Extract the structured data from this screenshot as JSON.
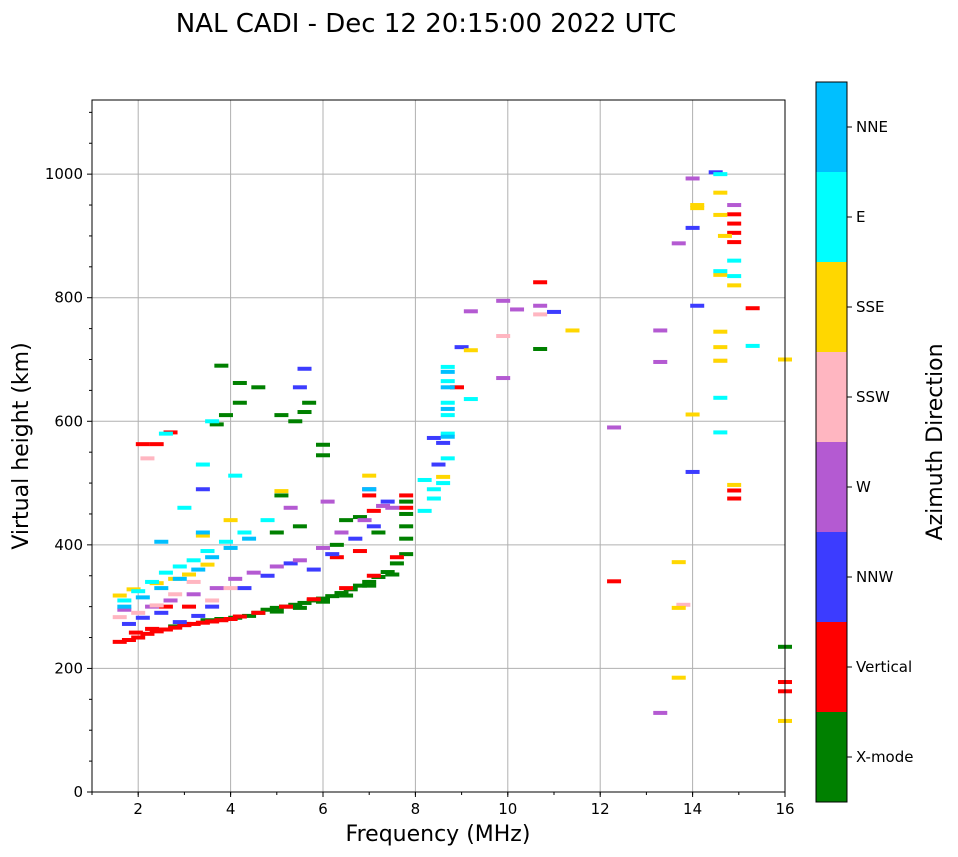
{
  "chart_data": {
    "type": "scatter",
    "title": "NAL CADI - Dec 12 20:15:00 2022 UTC",
    "xlabel": "Frequency (MHz)",
    "ylabel": "Virtual height (km)",
    "xlim": [
      1,
      16
    ],
    "ylim": [
      0,
      1120
    ],
    "xticks": [
      2,
      4,
      6,
      8,
      10,
      12,
      14,
      16
    ],
    "yticks": [
      0,
      200,
      400,
      600,
      800,
      1000
    ],
    "grid": true,
    "colorbar": {
      "title": "Azimuth Direction",
      "categories": [
        {
          "label": "X-mode",
          "color": "#008000"
        },
        {
          "label": "Vertical",
          "color": "#ff0000"
        },
        {
          "label": "NNW",
          "color": "#3c3cff"
        },
        {
          "label": "W",
          "color": "#b45ad2"
        },
        {
          "label": "SSW",
          "color": "#ffb6c1"
        },
        {
          "label": "SSE",
          "color": "#ffd700"
        },
        {
          "label": "E",
          "color": "#00ffff"
        },
        {
          "label": "NNE",
          "color": "#00bfff"
        }
      ]
    },
    "series": [
      {
        "name": "X-mode",
        "color": "#008000",
        "points": [
          [
            4.1,
            282
          ],
          [
            4.4,
            285
          ],
          [
            4.6,
            290
          ],
          [
            4.8,
            295
          ],
          [
            5.0,
            298
          ],
          [
            5.2,
            300
          ],
          [
            5.4,
            303
          ],
          [
            5.6,
            306
          ],
          [
            5.8,
            310
          ],
          [
            6.0,
            313
          ],
          [
            6.2,
            317
          ],
          [
            6.4,
            322
          ],
          [
            6.6,
            328
          ],
          [
            6.8,
            334
          ],
          [
            7.0,
            340
          ],
          [
            7.2,
            348
          ],
          [
            7.4,
            356
          ],
          [
            7.6,
            370
          ],
          [
            7.8,
            385
          ],
          [
            5.0,
            292
          ],
          [
            5.5,
            298
          ],
          [
            6.0,
            308
          ],
          [
            6.5,
            318
          ],
          [
            7.0,
            334
          ],
          [
            7.5,
            352
          ],
          [
            7.8,
            410
          ],
          [
            7.8,
            430
          ],
          [
            7.8,
            450
          ],
          [
            7.8,
            470
          ],
          [
            3.5,
            278
          ],
          [
            3.8,
            280
          ],
          [
            3.0,
            272
          ],
          [
            2.8,
            268
          ],
          [
            4.6,
            655
          ],
          [
            5.1,
            610
          ],
          [
            5.4,
            600
          ],
          [
            5.6,
            615
          ],
          [
            5.7,
            630
          ],
          [
            3.9,
            610
          ],
          [
            3.7,
            595
          ],
          [
            4.2,
            630
          ],
          [
            3.8,
            690
          ],
          [
            4.2,
            662
          ],
          [
            6.0,
            545
          ],
          [
            6.0,
            562
          ],
          [
            5.1,
            480
          ],
          [
            5.5,
            430
          ],
          [
            6.5,
            440
          ],
          [
            6.8,
            445
          ],
          [
            7.2,
            420
          ],
          [
            6.3,
            400
          ],
          [
            5.0,
            420
          ],
          [
            10.7,
            717
          ],
          [
            16.0,
            235
          ]
        ]
      },
      {
        "name": "Vertical",
        "color": "#ff0000",
        "points": [
          [
            1.6,
            243
          ],
          [
            1.8,
            246
          ],
          [
            2.0,
            250
          ],
          [
            2.2,
            256
          ],
          [
            2.4,
            260
          ],
          [
            2.6,
            263
          ],
          [
            2.8,
            266
          ],
          [
            3.0,
            270
          ],
          [
            3.2,
            272
          ],
          [
            3.4,
            274
          ],
          [
            3.6,
            276
          ],
          [
            3.8,
            278
          ],
          [
            4.0,
            280
          ],
          [
            4.2,
            284
          ],
          [
            4.6,
            290
          ],
          [
            5.2,
            300
          ],
          [
            5.8,
            312
          ],
          [
            6.5,
            330
          ],
          [
            7.1,
            350
          ],
          [
            7.6,
            380
          ],
          [
            7.8,
            480
          ],
          [
            7.8,
            460
          ],
          [
            1.95,
            258
          ],
          [
            2.3,
            264
          ],
          [
            2.6,
            300
          ],
          [
            3.1,
            300
          ],
          [
            6.3,
            380
          ],
          [
            6.8,
            390
          ],
          [
            7.0,
            480
          ],
          [
            7.1,
            455
          ],
          [
            2.1,
            563
          ],
          [
            2.4,
            563
          ],
          [
            2.7,
            582
          ],
          [
            8.9,
            655
          ],
          [
            10.7,
            825
          ],
          [
            12.3,
            341
          ],
          [
            14.9,
            935
          ],
          [
            14.9,
            920
          ],
          [
            14.9,
            905
          ],
          [
            14.9,
            890
          ],
          [
            15.3,
            783
          ],
          [
            14.9,
            488
          ],
          [
            14.9,
            475
          ],
          [
            16.0,
            178
          ],
          [
            16.0,
            163
          ]
        ]
      },
      {
        "name": "NNW",
        "color": "#3c3cff",
        "points": [
          [
            1.8,
            272
          ],
          [
            2.1,
            282
          ],
          [
            2.5,
            290
          ],
          [
            2.9,
            275
          ],
          [
            3.3,
            285
          ],
          [
            3.6,
            300
          ],
          [
            4.3,
            330
          ],
          [
            4.8,
            350
          ],
          [
            5.3,
            370
          ],
          [
            5.8,
            360
          ],
          [
            6.2,
            385
          ],
          [
            6.7,
            410
          ],
          [
            7.1,
            430
          ],
          [
            7.0,
            490
          ],
          [
            7.4,
            470
          ],
          [
            5.5,
            655
          ],
          [
            5.6,
            685
          ],
          [
            8.4,
            573
          ],
          [
            8.6,
            565
          ],
          [
            8.5,
            530
          ],
          [
            9.0,
            720
          ],
          [
            11.0,
            777
          ],
          [
            14.0,
            913
          ],
          [
            14.1,
            787
          ],
          [
            14.0,
            518
          ],
          [
            14.5,
            1003
          ],
          [
            3.4,
            490
          ]
        ]
      },
      {
        "name": "W",
        "color": "#b45ad2",
        "points": [
          [
            1.7,
            295
          ],
          [
            2.3,
            300
          ],
          [
            2.7,
            310
          ],
          [
            3.2,
            320
          ],
          [
            3.7,
            330
          ],
          [
            4.1,
            345
          ],
          [
            4.5,
            355
          ],
          [
            5.0,
            365
          ],
          [
            5.5,
            375
          ],
          [
            6.0,
            395
          ],
          [
            6.4,
            420
          ],
          [
            6.9,
            440
          ],
          [
            7.3,
            463
          ],
          [
            7.5,
            460
          ],
          [
            5.3,
            460
          ],
          [
            6.1,
            470
          ],
          [
            9.2,
            778
          ],
          [
            9.9,
            795
          ],
          [
            10.2,
            781
          ],
          [
            10.7,
            787
          ],
          [
            9.9,
            670
          ],
          [
            12.3,
            590
          ],
          [
            13.3,
            747
          ],
          [
            13.3,
            696
          ],
          [
            13.7,
            888
          ],
          [
            14.0,
            993
          ],
          [
            13.3,
            128
          ],
          [
            14.9,
            950
          ]
        ]
      },
      {
        "name": "SSW",
        "color": "#ffb6c1",
        "points": [
          [
            1.6,
            283
          ],
          [
            2.0,
            290
          ],
          [
            2.4,
            302
          ],
          [
            2.8,
            320
          ],
          [
            3.2,
            340
          ],
          [
            3.6,
            310
          ],
          [
            4.0,
            330
          ],
          [
            2.2,
            540
          ],
          [
            9.9,
            738
          ],
          [
            10.7,
            773
          ],
          [
            14.6,
            698
          ],
          [
            13.8,
            303
          ]
        ]
      },
      {
        "name": "SSE",
        "color": "#ffd700",
        "points": [
          [
            1.6,
            318
          ],
          [
            1.9,
            328
          ],
          [
            2.4,
            338
          ],
          [
            2.8,
            345
          ],
          [
            3.1,
            352
          ],
          [
            3.5,
            368
          ],
          [
            4.0,
            440
          ],
          [
            5.1,
            487
          ],
          [
            7.0,
            512
          ],
          [
            8.6,
            510
          ],
          [
            9.2,
            715
          ],
          [
            11.4,
            747
          ],
          [
            13.7,
            372
          ],
          [
            13.7,
            298
          ],
          [
            13.7,
            185
          ],
          [
            14.1,
            950
          ],
          [
            14.1,
            945
          ],
          [
            14.6,
            970
          ],
          [
            14.6,
            934
          ],
          [
            14.7,
            900
          ],
          [
            14.6,
            837
          ],
          [
            14.9,
            820
          ],
          [
            14.6,
            745
          ],
          [
            14.6,
            720
          ],
          [
            14.6,
            698
          ],
          [
            14.0,
            611
          ],
          [
            14.9,
            497
          ],
          [
            16.0,
            115
          ],
          [
            16.0,
            700
          ],
          [
            3.4,
            415
          ]
        ]
      },
      {
        "name": "E",
        "color": "#00ffff",
        "points": [
          [
            1.7,
            310
          ],
          [
            2.0,
            325
          ],
          [
            2.3,
            340
          ],
          [
            2.6,
            355
          ],
          [
            2.9,
            365
          ],
          [
            3.2,
            375
          ],
          [
            3.5,
            390
          ],
          [
            3.9,
            405
          ],
          [
            4.3,
            420
          ],
          [
            4.8,
            440
          ],
          [
            3.0,
            460
          ],
          [
            3.4,
            530
          ],
          [
            3.6,
            600
          ],
          [
            4.1,
            512
          ],
          [
            2.6,
            580
          ],
          [
            8.2,
            505
          ],
          [
            8.4,
            490
          ],
          [
            8.4,
            475
          ],
          [
            8.6,
            500
          ],
          [
            8.7,
            540
          ],
          [
            8.7,
            580
          ],
          [
            8.7,
            610
          ],
          [
            8.7,
            630
          ],
          [
            8.7,
            665
          ],
          [
            8.7,
            688
          ],
          [
            9.2,
            636
          ],
          [
            8.2,
            455
          ],
          [
            14.6,
            843
          ],
          [
            14.9,
            835
          ],
          [
            14.9,
            860
          ],
          [
            15.3,
            722
          ],
          [
            14.6,
            638
          ],
          [
            14.6,
            582
          ],
          [
            14.6,
            1000
          ]
        ]
      },
      {
        "name": "NNE",
        "color": "#00bfff",
        "points": [
          [
            1.7,
            300
          ],
          [
            2.1,
            315
          ],
          [
            2.5,
            330
          ],
          [
            2.9,
            345
          ],
          [
            3.3,
            360
          ],
          [
            3.6,
            380
          ],
          [
            4.0,
            395
          ],
          [
            4.4,
            410
          ],
          [
            2.5,
            405
          ],
          [
            3.4,
            420
          ],
          [
            7.0,
            490
          ],
          [
            8.7,
            575
          ],
          [
            8.7,
            620
          ],
          [
            8.7,
            655
          ],
          [
            8.7,
            680
          ]
        ]
      }
    ]
  }
}
